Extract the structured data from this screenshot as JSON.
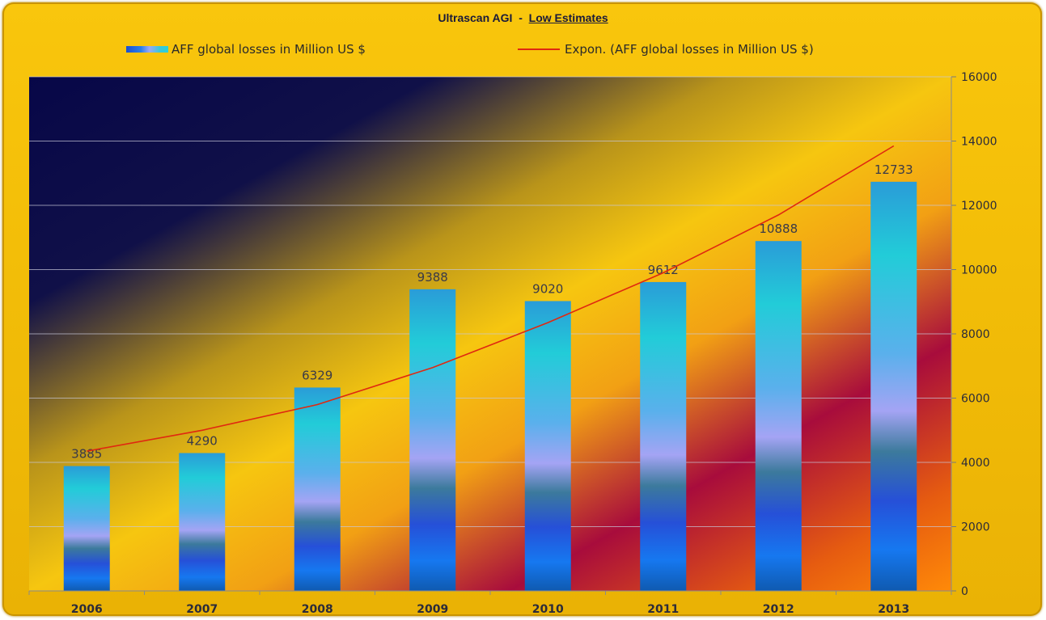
{
  "chart_data": {
    "type": "bar",
    "title": "Ultrascan AGI",
    "title_separator": "-",
    "subtitle": "Low Estimates",
    "categories": [
      "2006",
      "2007",
      "2008",
      "2009",
      "2010",
      "2011",
      "2012",
      "2013"
    ],
    "series": [
      {
        "name": "AFF global losses in Million US $",
        "values": [
          3885,
          4290,
          6329,
          9388,
          9020,
          9612,
          10888,
          12733
        ],
        "data_labels": [
          "3885",
          "4290",
          "6329",
          "9388",
          "9020",
          "9612",
          "10888",
          "12733"
        ]
      }
    ],
    "trendline": {
      "name": "Expon. (AFF global losses in Million US $)",
      "type": "exponential",
      "color": "#e02810",
      "values": [
        4350,
        5000,
        5800,
        6950,
        8350,
        9900,
        11700,
        13850
      ]
    },
    "y_ticks": [
      "0",
      "2000",
      "4000",
      "6000",
      "8000",
      "10000",
      "12000",
      "14000",
      "16000"
    ],
    "ylim": [
      0,
      16000
    ],
    "y_axis_side": "right",
    "grid": true,
    "legend_position": "top",
    "colors": {
      "frame": "#f5c108",
      "plot_dark": "#0a0a4a",
      "plot_gold": "#f5c710",
      "plot_crimson": "#a80c3c",
      "bar_top": "#2cc4d8",
      "bar_bottom": "#1166e0",
      "trend": "#e02810"
    }
  }
}
